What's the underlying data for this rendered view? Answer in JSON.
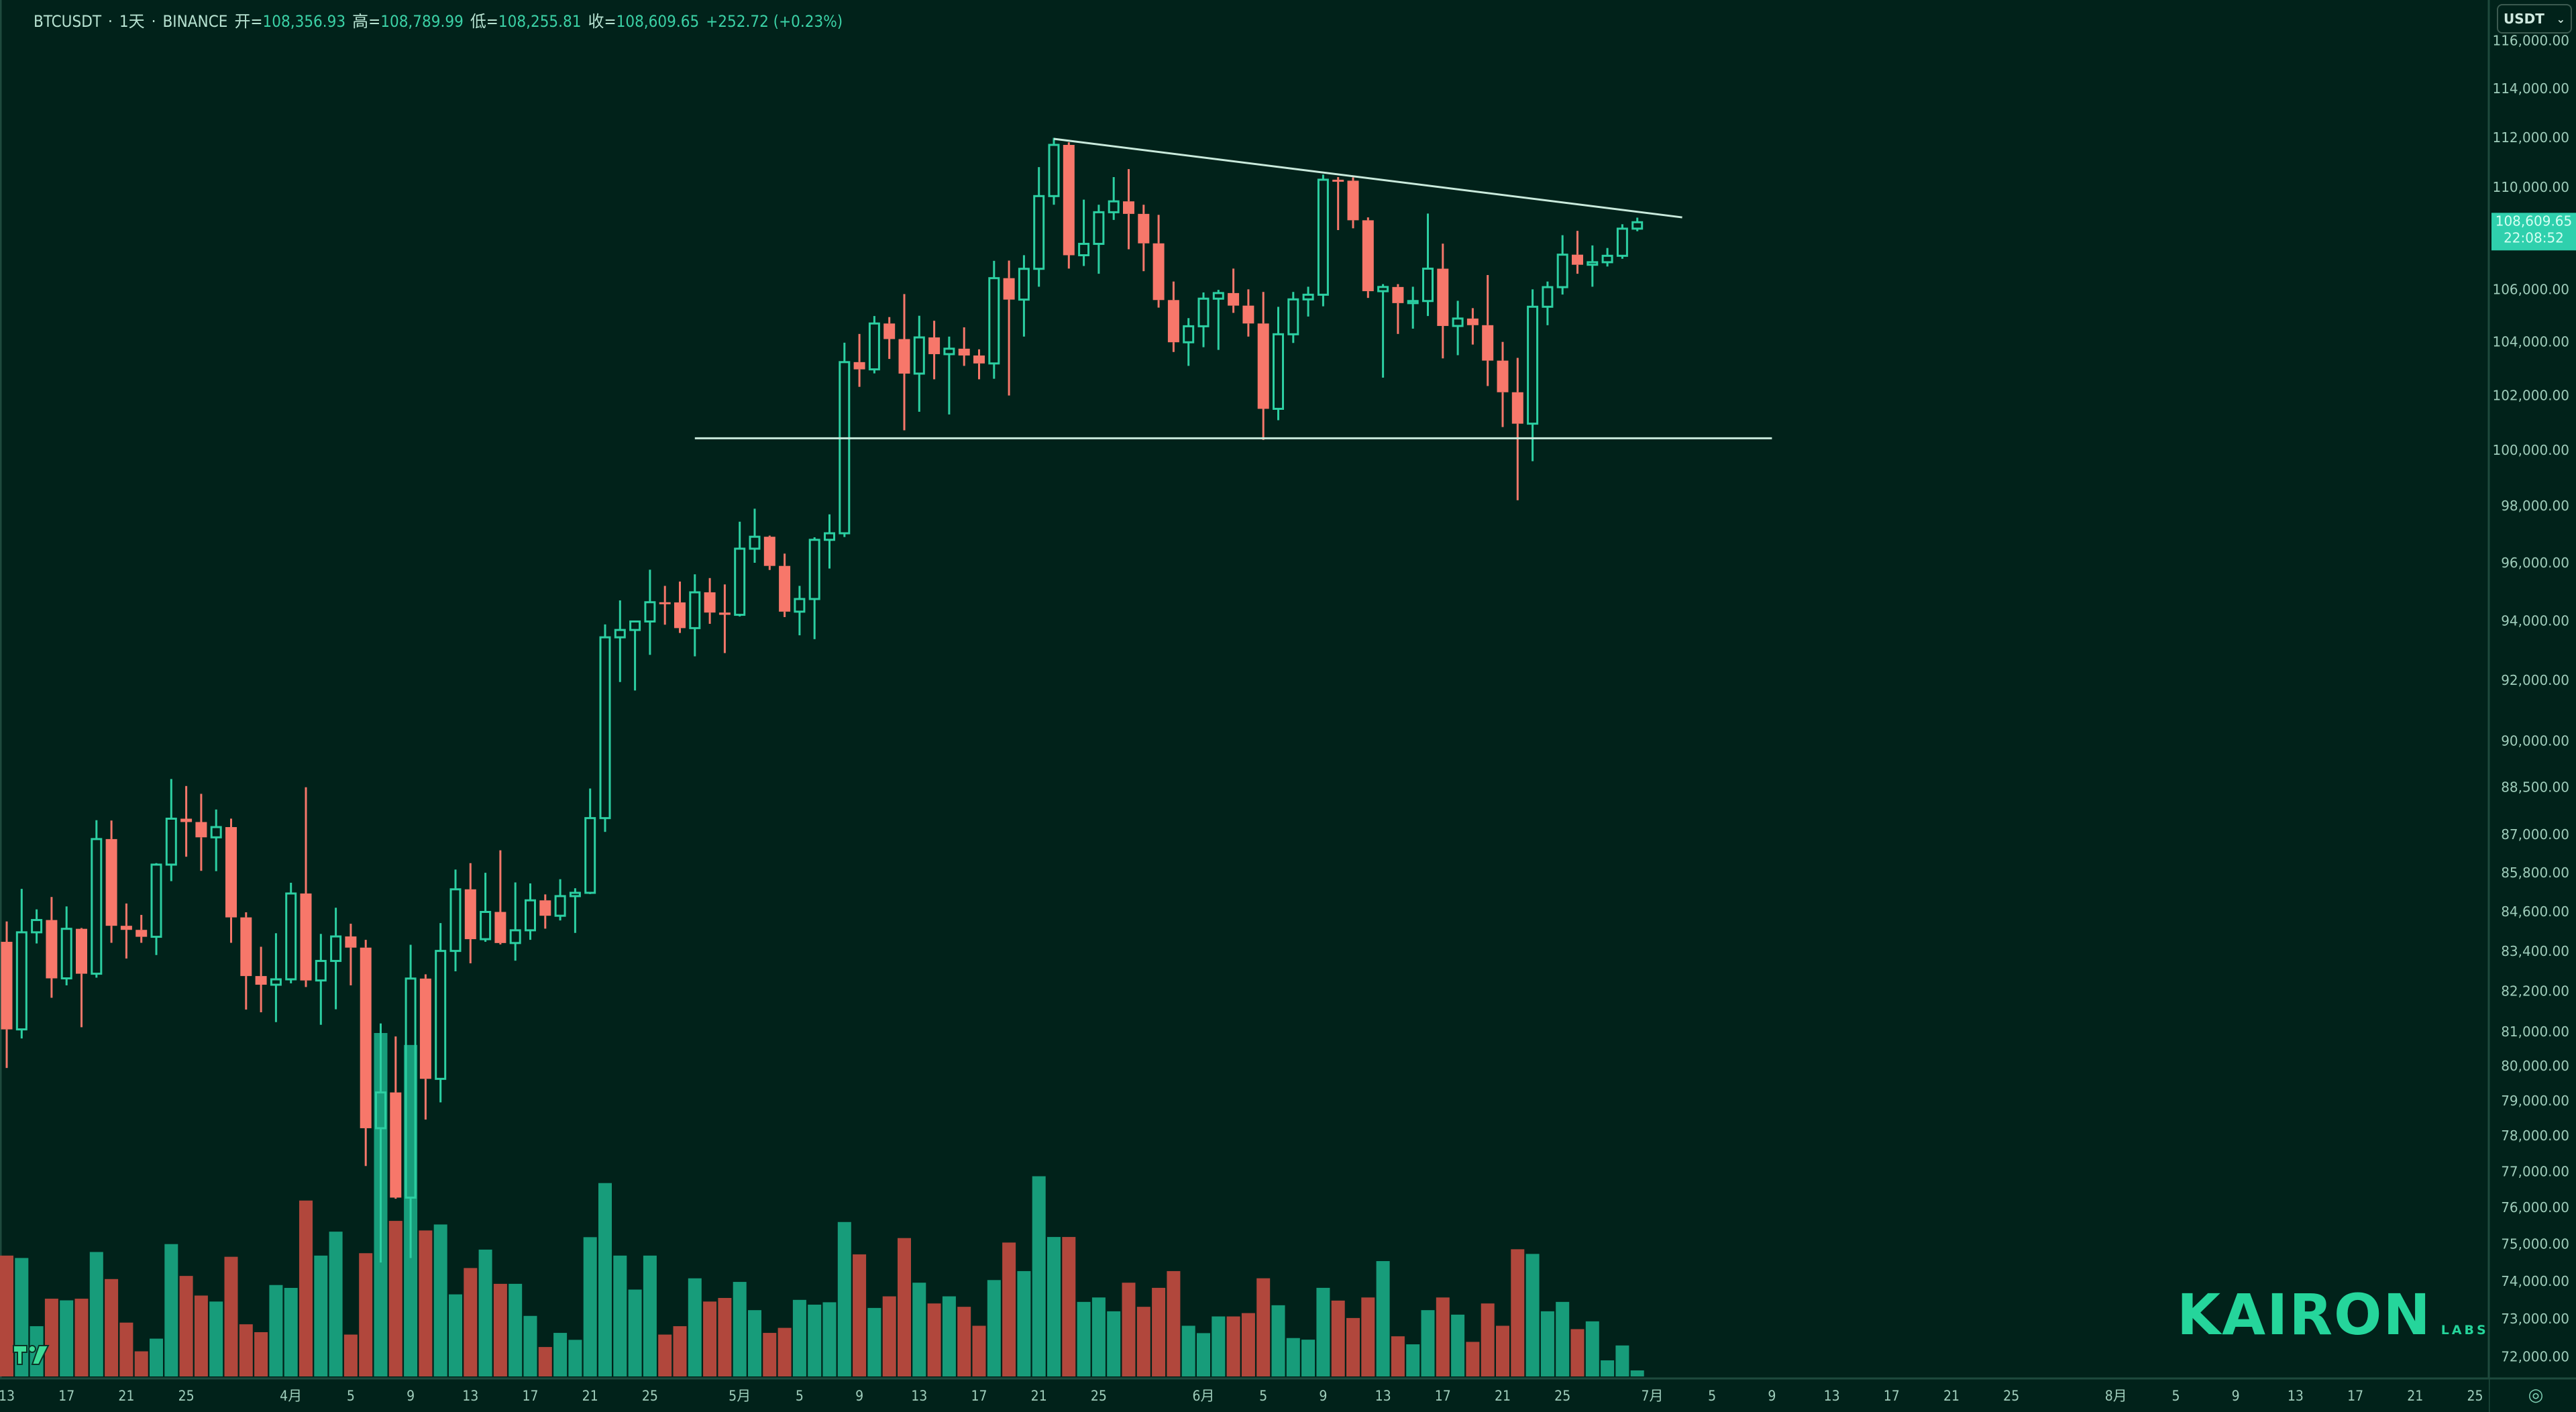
{
  "header": {
    "symbol": "BTCUSDT",
    "interval": "1天",
    "exchange": "BINANCE",
    "sep": "·",
    "open_label": "开=",
    "open": "108,356.93",
    "high_label": "高=",
    "high": "108,789.99",
    "low_label": "低=",
    "low": "108,255.81",
    "close_label": "收=",
    "close": "108,609.65",
    "change": "+252.72 (+0.23%)"
  },
  "currency_select": {
    "value": "USDT",
    "icon": "chevron-down-icon"
  },
  "current_price": {
    "price": "108,609.65",
    "countdown": "22:08:52"
  },
  "watermark": {
    "brand": "KAIRON",
    "sub": "LABS"
  },
  "colors": {
    "background": "#01221a",
    "up": "#2ccfa2",
    "down": "#f7776a",
    "volume_up": "#179c7a",
    "volume_down": "#b1473c",
    "line": "#c9eadc",
    "price_label": "#2fd0ad",
    "axis_text": "#9fcdbb",
    "brand": "#25d59b"
  },
  "chart_data": {
    "type": "candlestick",
    "title": "",
    "y_scale": "log",
    "grid": false,
    "y_ticks": [
      "116,000.00",
      "114,000.00",
      "112,000.00",
      "110,000.00",
      "106,000.00",
      "104,000.00",
      "102,000.00",
      "100,000.00",
      "98,000.00",
      "96,000.00",
      "94,000.00",
      "92,000.00",
      "90,000.00",
      "88,500.00",
      "87,000.00",
      "85,800.00",
      "84,600.00",
      "83,400.00",
      "82,200.00",
      "81,000.00",
      "80,000.00",
      "79,000.00",
      "78,000.00",
      "77,000.00",
      "76,000.00",
      "75,000.00",
      "74,000.00",
      "73,000.00",
      "72,000.00"
    ],
    "x_ticks": [
      {
        "label": "13",
        "date": "03-13"
      },
      {
        "label": "17",
        "date": "03-17"
      },
      {
        "label": "21",
        "date": "03-21"
      },
      {
        "label": "25",
        "date": "03-25"
      },
      {
        "label": "4月",
        "date": "04-01"
      },
      {
        "label": "5",
        "date": "04-05"
      },
      {
        "label": "9",
        "date": "04-09"
      },
      {
        "label": "13",
        "date": "04-13"
      },
      {
        "label": "17",
        "date": "04-17"
      },
      {
        "label": "21",
        "date": "04-21"
      },
      {
        "label": "25",
        "date": "04-25"
      },
      {
        "label": "5月",
        "date": "05-01"
      },
      {
        "label": "5",
        "date": "05-05"
      },
      {
        "label": "9",
        "date": "05-09"
      },
      {
        "label": "13",
        "date": "05-13"
      },
      {
        "label": "17",
        "date": "05-17"
      },
      {
        "label": "21",
        "date": "05-21"
      },
      {
        "label": "25",
        "date": "05-25"
      },
      {
        "label": "6月",
        "date": "06-01"
      },
      {
        "label": "5",
        "date": "06-05"
      },
      {
        "label": "9",
        "date": "06-09"
      },
      {
        "label": "13",
        "date": "06-13"
      },
      {
        "label": "17",
        "date": "06-17"
      },
      {
        "label": "21",
        "date": "06-21"
      },
      {
        "label": "25",
        "date": "06-25"
      },
      {
        "label": "7月",
        "date": "07-01"
      },
      {
        "label": "5",
        "date": "07-05"
      },
      {
        "label": "9",
        "date": "07-09"
      },
      {
        "label": "13",
        "date": "07-13"
      },
      {
        "label": "17",
        "date": "07-17"
      },
      {
        "label": "21",
        "date": "07-21"
      },
      {
        "label": "25",
        "date": "07-25"
      },
      {
        "label": "8月",
        "date": "08-01"
      },
      {
        "label": "5",
        "date": "08-05"
      },
      {
        "label": "9",
        "date": "08-09"
      },
      {
        "label": "13",
        "date": "08-13"
      },
      {
        "label": "17",
        "date": "08-17"
      },
      {
        "label": "21",
        "date": "08-21"
      },
      {
        "label": "25",
        "date": "08-25"
      }
    ],
    "candle_fields": [
      "date",
      "open",
      "high",
      "low",
      "close",
      "volume"
    ],
    "candles": [
      [
        "03-13",
        83680,
        84300,
        79940,
        81066,
        20200
      ],
      [
        "03-14",
        81066,
        85300,
        80800,
        83969,
        19800
      ],
      [
        "03-15",
        83969,
        84670,
        83630,
        84343,
        8400
      ],
      [
        "03-16",
        84343,
        85050,
        82000,
        82579,
        13000
      ],
      [
        "03-17",
        82579,
        84760,
        82370,
        84075,
        12720
      ],
      [
        "03-18",
        84075,
        84100,
        81130,
        82718,
        13000
      ],
      [
        "03-19",
        82718,
        87450,
        82600,
        86854,
        20800
      ],
      [
        "03-20",
        86854,
        87440,
        83650,
        84167,
        16280
      ],
      [
        "03-21",
        84167,
        84850,
        83175,
        84043,
        9000
      ],
      [
        "03-22",
        84043,
        84500,
        83650,
        83832,
        4200
      ],
      [
        "03-23",
        83832,
        86100,
        83280,
        86054,
        6320
      ],
      [
        "03-24",
        86054,
        88765,
        85540,
        87498,
        22120
      ],
      [
        "03-25",
        87498,
        88540,
        86300,
        87392,
        16800
      ],
      [
        "03-26",
        87392,
        88290,
        85860,
        86909,
        13520
      ],
      [
        "03-27",
        86909,
        87790,
        85850,
        87232,
        12520
      ],
      [
        "03-28",
        87232,
        87500,
        83650,
        84424,
        20000
      ],
      [
        "03-29",
        84424,
        84580,
        81650,
        82648,
        8720
      ],
      [
        "03-30",
        82648,
        83530,
        81570,
        82389,
        7400
      ],
      [
        "03-31",
        82389,
        83940,
        81280,
        82550,
        15280
      ],
      [
        "04-01",
        82550,
        85490,
        82430,
        85158,
        14800
      ],
      [
        "04-02",
        85158,
        88500,
        82320,
        82516,
        29400
      ],
      [
        "04-03",
        82516,
        83920,
        81200,
        83102,
        20200
      ],
      [
        "04-04",
        83102,
        84720,
        81660,
        83843,
        24200
      ],
      [
        "04-05",
        83843,
        84230,
        82370,
        83504,
        7000
      ],
      [
        "04-06",
        83504,
        83740,
        77150,
        78214,
        20600
      ],
      [
        "04-07",
        78214,
        81240,
        74500,
        79235,
        57400
      ],
      [
        "04-08",
        79235,
        80860,
        76240,
        76272,
        26000
      ],
      [
        "04-09",
        76272,
        83590,
        74620,
        82573,
        55400
      ],
      [
        "04-10",
        82573,
        82700,
        78460,
        79626,
        24400
      ],
      [
        "04-11",
        79626,
        84250,
        78950,
        83404,
        25400
      ],
      [
        "04-12",
        83404,
        85900,
        82790,
        85287,
        13720
      ],
      [
        "04-13",
        85287,
        86100,
        83030,
        83760,
        18120
      ],
      [
        "04-14",
        83760,
        85800,
        83680,
        84591,
        21200
      ],
      [
        "04-15",
        84591,
        86500,
        83600,
        83643,
        15480
      ],
      [
        "04-16",
        83643,
        85500,
        83110,
        84030,
        15480
      ],
      [
        "04-17",
        84030,
        85470,
        83740,
        84947,
        10120
      ],
      [
        "04-18",
        84947,
        85130,
        84080,
        84474,
        4920
      ],
      [
        "04-19",
        84474,
        85600,
        84330,
        85077,
        7280
      ],
      [
        "04-20",
        85077,
        85320,
        83950,
        85179,
        6120
      ],
      [
        "04-21",
        85179,
        88460,
        85140,
        87516,
        23280
      ],
      [
        "04-22",
        87516,
        93880,
        87080,
        93442,
        32320
      ],
      [
        "04-23",
        93442,
        94700,
        91940,
        93691,
        20200
      ],
      [
        "04-24",
        93691,
        94000,
        91660,
        93980,
        14520
      ],
      [
        "04-25",
        93980,
        95760,
        92850,
        94638,
        20200
      ],
      [
        "04-26",
        94638,
        95200,
        93870,
        94631,
        7000
      ],
      [
        "04-27",
        94631,
        95350,
        93590,
        93754,
        8400
      ],
      [
        "04-28",
        93754,
        95600,
        92800,
        94978,
        16400
      ],
      [
        "04-29",
        94978,
        95470,
        93900,
        94284,
        12520
      ],
      [
        "04-30",
        94284,
        95250,
        92910,
        94207,
        13120
      ],
      [
        "05-01",
        94207,
        97440,
        94150,
        96492,
        15800
      ],
      [
        "05-02",
        96492,
        97900,
        96000,
        96910,
        11080
      ],
      [
        "05-03",
        96910,
        96950,
        95750,
        95891,
        7280
      ],
      [
        "05-04",
        95891,
        96320,
        94130,
        94315,
        8120
      ],
      [
        "05-05",
        94315,
        95200,
        93510,
        94748,
        12800
      ],
      [
        "05-06",
        94748,
        96890,
        93380,
        96802,
        12000
      ],
      [
        "05-07",
        96802,
        97700,
        95800,
        97032,
        12400
      ],
      [
        "05-08",
        97032,
        103970,
        96900,
        103241,
        25810
      ],
      [
        "05-09",
        103241,
        104300,
        102320,
        102970,
        20400
      ],
      [
        "05-10",
        102970,
        104980,
        102820,
        104696,
        11450
      ],
      [
        "05-11",
        104696,
        104940,
        103360,
        104106,
        13390
      ],
      [
        "05-12",
        104106,
        105820,
        100720,
        102812,
        23130
      ],
      [
        "05-13",
        102812,
        104990,
        101400,
        104169,
        15670
      ],
      [
        "05-14",
        104169,
        104800,
        102600,
        103539,
        12200
      ],
      [
        "05-15",
        103539,
        104200,
        101300,
        103744,
        13390
      ],
      [
        "05-16",
        103744,
        104550,
        103100,
        103489,
        11640
      ],
      [
        "05-17",
        103489,
        103720,
        102600,
        103191,
        8470
      ],
      [
        "05-18",
        103191,
        107100,
        102620,
        106430,
        16110
      ],
      [
        "05-19",
        106430,
        107110,
        102000,
        105606,
        22380
      ],
      [
        "05-20",
        105606,
        107320,
        104200,
        106791,
        17610
      ],
      [
        "05-21",
        106791,
        110800,
        106100,
        109643,
        33460
      ],
      [
        "05-22",
        109643,
        111980,
        109300,
        111696,
        23310
      ],
      [
        "05-23",
        111696,
        111800,
        106800,
        107318,
        23310
      ],
      [
        "05-24",
        107318,
        109500,
        106900,
        107761,
        12460
      ],
      [
        "05-25",
        107761,
        109300,
        106600,
        109004,
        13200
      ],
      [
        "05-26",
        109004,
        110400,
        108700,
        109434,
        10890
      ],
      [
        "05-27",
        109434,
        110720,
        107550,
        108938,
        15670
      ],
      [
        "05-28",
        108938,
        109300,
        106700,
        107781,
        11640
      ],
      [
        "05-29",
        107781,
        108900,
        105300,
        105589,
        14810
      ],
      [
        "05-30",
        105589,
        106300,
        103620,
        103986,
        17610
      ],
      [
        "05-31",
        103986,
        104900,
        103100,
        104591,
        8470
      ],
      [
        "06-01",
        104591,
        105880,
        103800,
        105642,
        7240
      ],
      [
        "06-02",
        105642,
        105980,
        103700,
        105857,
        10030
      ],
      [
        "06-03",
        105857,
        106800,
        105100,
        105376,
        10030
      ],
      [
        "06-04",
        105376,
        106000,
        104200,
        104696,
        10590
      ],
      [
        "06-05",
        104696,
        105900,
        100370,
        101508,
        16410
      ],
      [
        "06-06",
        101508,
        105330,
        101090,
        104288,
        11900
      ],
      [
        "06-07",
        104288,
        105900,
        103960,
        105615,
        6420
      ],
      [
        "06-08",
        105615,
        106100,
        104960,
        105793,
        6150
      ],
      [
        "06-09",
        105793,
        110500,
        105350,
        110295,
        14810
      ],
      [
        "06-10",
        110295,
        110400,
        108300,
        110257,
        12680
      ],
      [
        "06-11",
        110257,
        110390,
        108370,
        108686,
        9770
      ],
      [
        "06-12",
        108686,
        108800,
        105670,
        105929,
        13200
      ],
      [
        "06-13",
        105929,
        106200,
        102660,
        106090,
        19280
      ],
      [
        "06-14",
        106090,
        106200,
        104300,
        105472,
        6710
      ],
      [
        "06-15",
        105472,
        106100,
        104500,
        105552,
        5370
      ],
      [
        "06-16",
        105552,
        108950,
        104980,
        106796,
        11080
      ],
      [
        "06-17",
        106796,
        107770,
        103380,
        104602,
        13200
      ],
      [
        "06-18",
        104602,
        105560,
        103500,
        104884,
        10330
      ],
      [
        "06-19",
        104884,
        105280,
        103900,
        104632,
        5780
      ],
      [
        "06-20",
        104632,
        106550,
        102350,
        103297,
        12200
      ],
      [
        "06-21",
        103297,
        104000,
        100840,
        102120,
        8470
      ],
      [
        "06-22",
        102120,
        103400,
        98200,
        100963,
        21260
      ],
      [
        "06-23",
        100963,
        106000,
        99600,
        105333,
        20480
      ],
      [
        "06-24",
        105333,
        106300,
        104630,
        106084,
        10890
      ],
      [
        "06-25",
        106084,
        108100,
        105800,
        107340,
        12460
      ],
      [
        "06-26",
        107340,
        108270,
        106600,
        106948,
        7910
      ],
      [
        "06-27",
        106948,
        107700,
        106100,
        107047,
        9210
      ],
      [
        "06-28",
        107047,
        107600,
        106880,
        107296,
        2690
      ],
      [
        "06-29",
        107296,
        108530,
        107180,
        108356,
        5180
      ],
      [
        "06-30",
        108356.93,
        108789.99,
        108255.81,
        108609.65,
        1010
      ]
    ],
    "drawings": {
      "trendline": {
        "from": {
          "date": "05-22",
          "price": 111940
        },
        "to": {
          "date": "07-03",
          "price": 108800
        }
      },
      "horizontal_line": {
        "price": 100430,
        "from_date": "04-28",
        "to_date": "07-09"
      }
    }
  }
}
